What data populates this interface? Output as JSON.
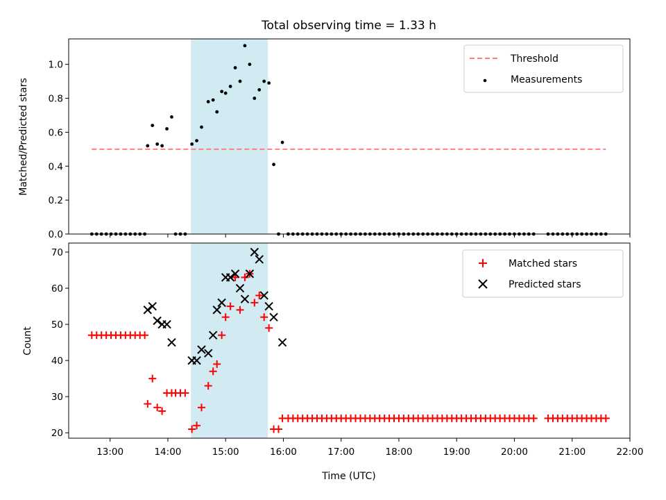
{
  "chart_data": {
    "type": "scatter",
    "title": "Total observing time = 1.33 h",
    "xlabel": "Time (UTC)",
    "x_ticks": [
      "13:00",
      "14:00",
      "15:00",
      "16:00",
      "17:00",
      "18:00",
      "19:00",
      "20:00",
      "21:00",
      "22:00"
    ],
    "shaded_interval": {
      "start": "14:24",
      "end": "15:44",
      "color": "#add8e6"
    },
    "top_panel": {
      "ylabel": "Matched/Predicted stars",
      "ylim": [
        0,
        1.15
      ],
      "y_ticks": [
        "0.0",
        "0.2",
        "0.4",
        "0.6",
        "0.8",
        "1.0"
      ],
      "legend_position": "upper right",
      "threshold": {
        "name": "Threshold",
        "value": 0.5,
        "x_start": "12:41",
        "x_end": "21:35",
        "color": "#ff7f7f",
        "style": "dashed"
      },
      "series": [
        {
          "name": "Measurements",
          "color": "#000000",
          "marker": "dot",
          "points": [
            [
              "12:41",
              0
            ],
            [
              "12:46",
              0
            ],
            [
              "12:51",
              0
            ],
            [
              "12:56",
              0
            ],
            [
              "13:01",
              0
            ],
            [
              "13:06",
              0
            ],
            [
              "13:11",
              0
            ],
            [
              "13:16",
              0
            ],
            [
              "13:21",
              0
            ],
            [
              "13:26",
              0
            ],
            [
              "13:31",
              0
            ],
            [
              "13:36",
              0
            ],
            [
              "13:39",
              0.52
            ],
            [
              "13:44",
              0.64
            ],
            [
              "13:49",
              0.53
            ],
            [
              "13:54",
              0.52
            ],
            [
              "13:59",
              0.62
            ],
            [
              "14:04",
              0.69
            ],
            [
              "14:08",
              0
            ],
            [
              "14:13",
              0
            ],
            [
              "14:18",
              0
            ],
            [
              "14:25",
              0.53
            ],
            [
              "14:30",
              0.55
            ],
            [
              "14:35",
              0.63
            ],
            [
              "14:42",
              0.78
            ],
            [
              "14:47",
              0.79
            ],
            [
              "14:51",
              0.72
            ],
            [
              "14:56",
              0.84
            ],
            [
              "15:00",
              0.83
            ],
            [
              "15:05",
              0.87
            ],
            [
              "15:10",
              0.98
            ],
            [
              "15:15",
              0.9
            ],
            [
              "15:20",
              1.11
            ],
            [
              "15:25",
              1.0
            ],
            [
              "15:30",
              0.8
            ],
            [
              "15:35",
              0.85
            ],
            [
              "15:40",
              0.9
            ],
            [
              "15:45",
              0.89
            ],
            [
              "15:50",
              0.41
            ],
            [
              "15:55",
              0
            ],
            [
              "15:59",
              0.54
            ],
            [
              "16:05",
              0
            ],
            [
              "16:10",
              0
            ],
            [
              "16:15",
              0
            ],
            [
              "16:20",
              0
            ],
            [
              "16:25",
              0
            ],
            [
              "16:30",
              0
            ],
            [
              "16:35",
              0
            ],
            [
              "16:40",
              0
            ],
            [
              "16:45",
              0
            ],
            [
              "16:50",
              0
            ],
            [
              "16:55",
              0
            ],
            [
              "17:00",
              0
            ],
            [
              "17:05",
              0
            ],
            [
              "17:10",
              0
            ],
            [
              "17:15",
              0
            ],
            [
              "17:20",
              0
            ],
            [
              "17:25",
              0
            ],
            [
              "17:30",
              0
            ],
            [
              "17:35",
              0
            ],
            [
              "17:40",
              0
            ],
            [
              "17:45",
              0
            ],
            [
              "17:50",
              0
            ],
            [
              "17:55",
              0
            ],
            [
              "18:00",
              0
            ],
            [
              "18:05",
              0
            ],
            [
              "18:10",
              0
            ],
            [
              "18:15",
              0
            ],
            [
              "18:20",
              0
            ],
            [
              "18:25",
              0
            ],
            [
              "18:30",
              0
            ],
            [
              "18:35",
              0
            ],
            [
              "18:40",
              0
            ],
            [
              "18:45",
              0
            ],
            [
              "18:50",
              0
            ],
            [
              "18:55",
              0
            ],
            [
              "19:00",
              0
            ],
            [
              "19:05",
              0
            ],
            [
              "19:10",
              0
            ],
            [
              "19:15",
              0
            ],
            [
              "19:20",
              0
            ],
            [
              "19:25",
              0
            ],
            [
              "19:30",
              0
            ],
            [
              "19:35",
              0
            ],
            [
              "19:40",
              0
            ],
            [
              "19:45",
              0
            ],
            [
              "19:50",
              0
            ],
            [
              "19:55",
              0
            ],
            [
              "20:00",
              0
            ],
            [
              "20:05",
              0
            ],
            [
              "20:10",
              0
            ],
            [
              "20:15",
              0
            ],
            [
              "20:20",
              0
            ],
            [
              "20:35",
              0
            ],
            [
              "20:40",
              0
            ],
            [
              "20:45",
              0
            ],
            [
              "20:50",
              0
            ],
            [
              "20:55",
              0
            ],
            [
              "21:00",
              0
            ],
            [
              "21:05",
              0
            ],
            [
              "21:10",
              0
            ],
            [
              "21:15",
              0
            ],
            [
              "21:20",
              0
            ],
            [
              "21:25",
              0
            ],
            [
              "21:30",
              0
            ],
            [
              "21:35",
              0
            ]
          ]
        }
      ]
    },
    "bottom_panel": {
      "ylabel": "Count",
      "ylim": [
        18.5,
        72.5
      ],
      "y_ticks": [
        "20",
        "30",
        "40",
        "50",
        "60",
        "70"
      ],
      "legend_position": "upper right",
      "series": [
        {
          "name": "Matched stars",
          "color": "#ff0000",
          "marker": "plus",
          "points": [
            [
              "12:41",
              47
            ],
            [
              "12:46",
              47
            ],
            [
              "12:51",
              47
            ],
            [
              "12:56",
              47
            ],
            [
              "13:01",
              47
            ],
            [
              "13:06",
              47
            ],
            [
              "13:11",
              47
            ],
            [
              "13:16",
              47
            ],
            [
              "13:21",
              47
            ],
            [
              "13:26",
              47
            ],
            [
              "13:31",
              47
            ],
            [
              "13:36",
              47
            ],
            [
              "13:39",
              28
            ],
            [
              "13:44",
              35
            ],
            [
              "13:49",
              27
            ],
            [
              "13:54",
              26
            ],
            [
              "13:59",
              31
            ],
            [
              "14:04",
              31
            ],
            [
              "14:08",
              31
            ],
            [
              "14:13",
              31
            ],
            [
              "14:18",
              31
            ],
            [
              "14:25",
              21
            ],
            [
              "14:30",
              22
            ],
            [
              "14:35",
              27
            ],
            [
              "14:42",
              33
            ],
            [
              "14:47",
              37
            ],
            [
              "14:51",
              39
            ],
            [
              "14:56",
              47
            ],
            [
              "15:00",
              52
            ],
            [
              "15:05",
              55
            ],
            [
              "15:10",
              63
            ],
            [
              "15:15",
              54
            ],
            [
              "15:20",
              63
            ],
            [
              "15:25",
              64
            ],
            [
              "15:30",
              56
            ],
            [
              "15:35",
              58
            ],
            [
              "15:40",
              52
            ],
            [
              "15:45",
              49
            ],
            [
              "15:50",
              21
            ],
            [
              "15:55",
              21
            ],
            [
              "15:59",
              24
            ],
            [
              "16:05",
              24
            ],
            [
              "16:10",
              24
            ],
            [
              "16:15",
              24
            ],
            [
              "16:20",
              24
            ],
            [
              "16:25",
              24
            ],
            [
              "16:30",
              24
            ],
            [
              "16:35",
              24
            ],
            [
              "16:40",
              24
            ],
            [
              "16:45",
              24
            ],
            [
              "16:50",
              24
            ],
            [
              "16:55",
              24
            ],
            [
              "17:00",
              24
            ],
            [
              "17:05",
              24
            ],
            [
              "17:10",
              24
            ],
            [
              "17:15",
              24
            ],
            [
              "17:20",
              24
            ],
            [
              "17:25",
              24
            ],
            [
              "17:30",
              24
            ],
            [
              "17:35",
              24
            ],
            [
              "17:40",
              24
            ],
            [
              "17:45",
              24
            ],
            [
              "17:50",
              24
            ],
            [
              "17:55",
              24
            ],
            [
              "18:00",
              24
            ],
            [
              "18:05",
              24
            ],
            [
              "18:10",
              24
            ],
            [
              "18:15",
              24
            ],
            [
              "18:20",
              24
            ],
            [
              "18:25",
              24
            ],
            [
              "18:30",
              24
            ],
            [
              "18:35",
              24
            ],
            [
              "18:40",
              24
            ],
            [
              "18:45",
              24
            ],
            [
              "18:50",
              24
            ],
            [
              "18:55",
              24
            ],
            [
              "19:00",
              24
            ],
            [
              "19:05",
              24
            ],
            [
              "19:10",
              24
            ],
            [
              "19:15",
              24
            ],
            [
              "19:20",
              24
            ],
            [
              "19:25",
              24
            ],
            [
              "19:30",
              24
            ],
            [
              "19:35",
              24
            ],
            [
              "19:40",
              24
            ],
            [
              "19:45",
              24
            ],
            [
              "19:50",
              24
            ],
            [
              "19:55",
              24
            ],
            [
              "20:00",
              24
            ],
            [
              "20:05",
              24
            ],
            [
              "20:10",
              24
            ],
            [
              "20:15",
              24
            ],
            [
              "20:20",
              24
            ],
            [
              "20:35",
              24
            ],
            [
              "20:40",
              24
            ],
            [
              "20:45",
              24
            ],
            [
              "20:50",
              24
            ],
            [
              "20:55",
              24
            ],
            [
              "21:00",
              24
            ],
            [
              "21:05",
              24
            ],
            [
              "21:10",
              24
            ],
            [
              "21:15",
              24
            ],
            [
              "21:20",
              24
            ],
            [
              "21:25",
              24
            ],
            [
              "21:30",
              24
            ],
            [
              "21:35",
              24
            ]
          ]
        },
        {
          "name": "Predicted stars",
          "color": "#000000",
          "marker": "x",
          "points": [
            [
              "13:39",
              54
            ],
            [
              "13:44",
              55
            ],
            [
              "13:49",
              51
            ],
            [
              "13:54",
              50
            ],
            [
              "13:59",
              50
            ],
            [
              "14:04",
              45
            ],
            [
              "14:25",
              40
            ],
            [
              "14:30",
              40
            ],
            [
              "14:35",
              43
            ],
            [
              "14:42",
              42
            ],
            [
              "14:47",
              47
            ],
            [
              "14:51",
              54
            ],
            [
              "14:56",
              56
            ],
            [
              "15:00",
              63
            ],
            [
              "15:05",
              63
            ],
            [
              "15:10",
              64
            ],
            [
              "15:15",
              60
            ],
            [
              "15:20",
              57
            ],
            [
              "15:25",
              64
            ],
            [
              "15:30",
              70
            ],
            [
              "15:35",
              68
            ],
            [
              "15:40",
              58
            ],
            [
              "15:45",
              55
            ],
            [
              "15:50",
              52
            ],
            [
              "15:59",
              45
            ]
          ]
        }
      ]
    }
  }
}
